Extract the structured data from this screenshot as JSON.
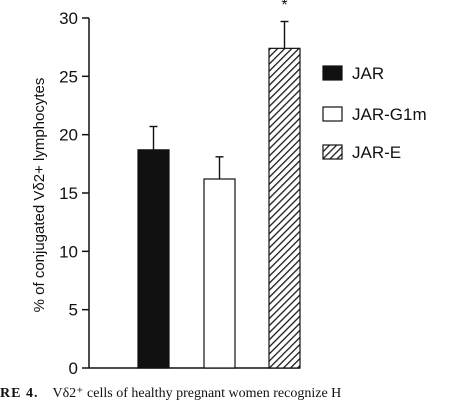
{
  "chart_data": {
    "type": "bar",
    "categories": [
      "JAR",
      "JAR-G1m",
      "JAR-E"
    ],
    "values": [
      18.7,
      16.2,
      27.4
    ],
    "errors": [
      2.0,
      1.9,
      2.3
    ],
    "fills": [
      "solid",
      "open",
      "hatched"
    ],
    "significance_marker": "*",
    "ylabel": "% of conjugated Vδ2+ lymphocytes",
    "xlabel": "",
    "ylim": [
      0,
      30
    ],
    "yticks": [
      0,
      5,
      10,
      15,
      20,
      25,
      30
    ],
    "grid": false,
    "legend": {
      "placement": "right",
      "entries": [
        {
          "label": "JAR",
          "fill": "solid"
        },
        {
          "label": "JAR-G1m",
          "fill": "open"
        },
        {
          "label": "JAR-E",
          "fill": "hatched"
        }
      ]
    }
  },
  "caption": {
    "label": "RE 4.",
    "text": "Vδ2⁺ cells of healthy pregnant women recognize H"
  }
}
